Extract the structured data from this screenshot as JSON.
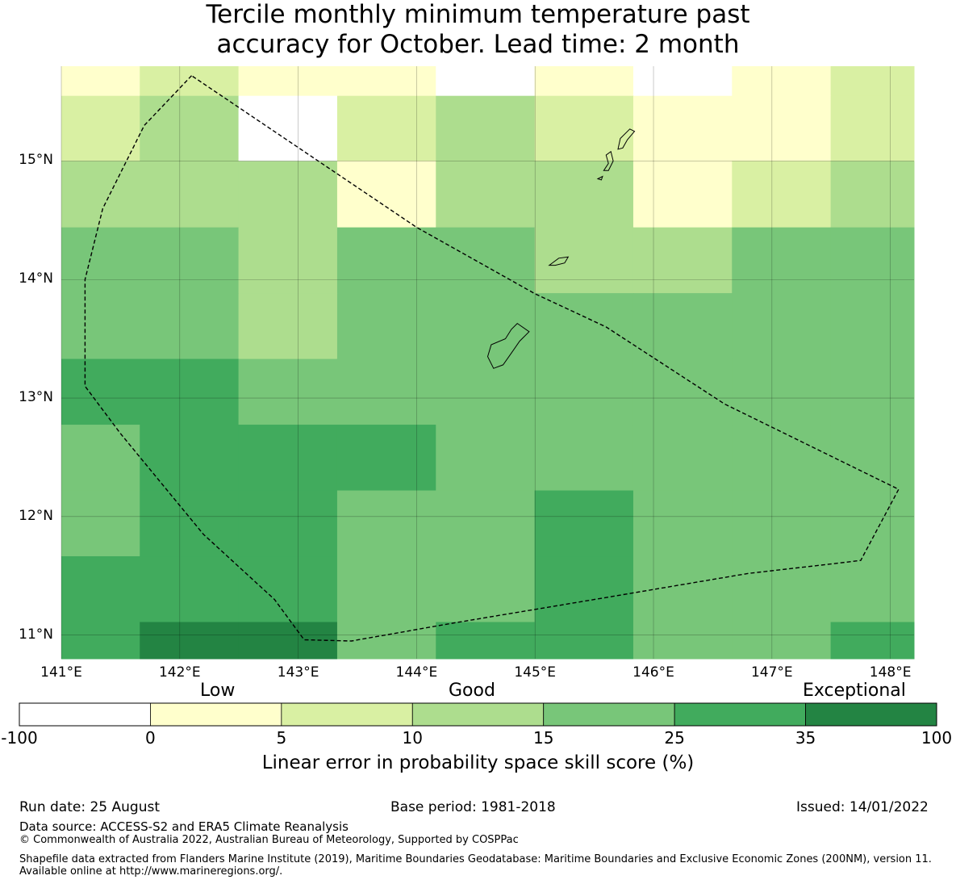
{
  "title_line1": "Tercile monthly minimum temperature past",
  "title_line2": "accuracy for October. Lead time: 2 month",
  "map": {
    "lon_range": [
      141,
      148.2
    ],
    "lat_range": [
      10.8,
      15.8
    ],
    "lon_ticks": [
      141,
      142,
      143,
      144,
      145,
      146,
      147,
      148
    ],
    "lat_ticks": [
      11,
      12,
      13,
      14,
      15
    ],
    "lon_labels": [
      "141°E",
      "142°E",
      "143°E",
      "144°E",
      "145°E",
      "146°E",
      "147°E",
      "148°E"
    ],
    "lat_labels": [
      "11°N",
      "12°N",
      "13°N",
      "14°N",
      "15°N"
    ],
    "grid_lons": [
      141.0,
      141.6625,
      142.4958,
      143.3292,
      144.1625,
      144.9958,
      145.8292,
      146.6625,
      147.4958,
      148.2
    ],
    "grid_lats": [
      15.8,
      15.55,
      15.0,
      14.44,
      13.885,
      13.33,
      12.775,
      12.22,
      11.665,
      11.11,
      10.8
    ],
    "cell_classes": [
      [
        1,
        2,
        1,
        1,
        0,
        1,
        0,
        1,
        2
      ],
      [
        2,
        3,
        0,
        2,
        3,
        2,
        1,
        1,
        2
      ],
      [
        3,
        3,
        3,
        1,
        3,
        3,
        1,
        2,
        3
      ],
      [
        4,
        4,
        3,
        4,
        4,
        3,
        3,
        4,
        4
      ],
      [
        4,
        4,
        3,
        4,
        4,
        4,
        4,
        4,
        4
      ],
      [
        5,
        5,
        4,
        4,
        4,
        4,
        4,
        4,
        4
      ],
      [
        4,
        5,
        5,
        5,
        4,
        4,
        4,
        4,
        4
      ],
      [
        4,
        5,
        5,
        4,
        4,
        5,
        4,
        4,
        4
      ],
      [
        5,
        5,
        5,
        4,
        4,
        5,
        4,
        4,
        4
      ],
      [
        5,
        6,
        6,
        4,
        5,
        5,
        4,
        4,
        5
      ]
    ],
    "eez_boundary": [
      [
        142.1,
        15.72
      ],
      [
        141.7,
        15.3
      ],
      [
        141.35,
        14.6
      ],
      [
        141.2,
        14.0
      ],
      [
        141.2,
        13.1
      ],
      [
        141.5,
        12.7
      ],
      [
        142.2,
        11.85
      ],
      [
        142.8,
        11.3
      ],
      [
        143.05,
        10.96
      ],
      [
        143.45,
        10.95
      ],
      [
        144.3,
        11.1
      ],
      [
        145.5,
        11.3
      ],
      [
        146.8,
        11.52
      ],
      [
        147.5,
        11.6
      ],
      [
        147.75,
        11.63
      ],
      [
        148.07,
        12.23
      ],
      [
        146.6,
        12.95
      ],
      [
        145.6,
        13.6
      ],
      [
        145.0,
        13.88
      ],
      [
        144.0,
        14.44
      ],
      [
        142.1,
        15.72
      ]
    ],
    "islands": [
      [
        [
          144.65,
          13.25
        ],
        [
          144.6,
          13.35
        ],
        [
          144.63,
          13.45
        ],
        [
          144.75,
          13.5
        ],
        [
          144.8,
          13.58
        ],
        [
          144.85,
          13.63
        ],
        [
          144.95,
          13.56
        ],
        [
          144.87,
          13.48
        ],
        [
          144.8,
          13.38
        ],
        [
          144.73,
          13.28
        ],
        [
          144.65,
          13.25
        ]
      ],
      [
        [
          145.12,
          14.12
        ],
        [
          145.2,
          14.18
        ],
        [
          145.28,
          14.19
        ],
        [
          145.25,
          14.14
        ],
        [
          145.17,
          14.12
        ],
        [
          145.12,
          14.12
        ]
      ],
      [
        [
          145.58,
          14.92
        ],
        [
          145.62,
          14.98
        ],
        [
          145.6,
          15.05
        ],
        [
          145.64,
          15.08
        ],
        [
          145.66,
          15.0
        ],
        [
          145.62,
          14.92
        ],
        [
          145.58,
          14.92
        ]
      ],
      [
        [
          145.53,
          14.85
        ],
        [
          145.57,
          14.87
        ],
        [
          145.56,
          14.84
        ],
        [
          145.53,
          14.85
        ]
      ],
      [
        [
          145.7,
          15.1
        ],
        [
          145.72,
          15.19
        ],
        [
          145.8,
          15.27
        ],
        [
          145.84,
          15.25
        ],
        [
          145.78,
          15.18
        ],
        [
          145.74,
          15.11
        ],
        [
          145.7,
          15.1
        ]
      ]
    ]
  },
  "colorbar": {
    "category_labels": {
      "low": "Low",
      "good": "Good",
      "exceptional": "Exceptional"
    },
    "colors": [
      "#ffffff",
      "#ffffcc",
      "#d9f0a3",
      "#addd8e",
      "#78c679",
      "#41ab5d",
      "#238443"
    ],
    "tick_labels": [
      "-100",
      "0",
      "5",
      "10",
      "15",
      "25",
      "35",
      "100"
    ],
    "label": "Linear error in probability space skill score (%)"
  },
  "footer": {
    "run_date": "Run date: 25 August",
    "base_period": "Base period: 1981-2018",
    "issued": "Issued: 14/01/2022",
    "data_source": "Data source: ACCESS-S2 and ERA5 Climate Reanalysis",
    "copyright": "© Commonwealth of Australia 2022, Australian Bureau of Meteorology, Supported by COSPPac",
    "shapefile": "Shapefile data extracted from Flanders Marine Institute (2019), Maritime Boundaries Geodatabase: Maritime Boundaries and Exclusive Economic Zones (200NM), version 11. Available online at http://www.marineregions.org/."
  }
}
